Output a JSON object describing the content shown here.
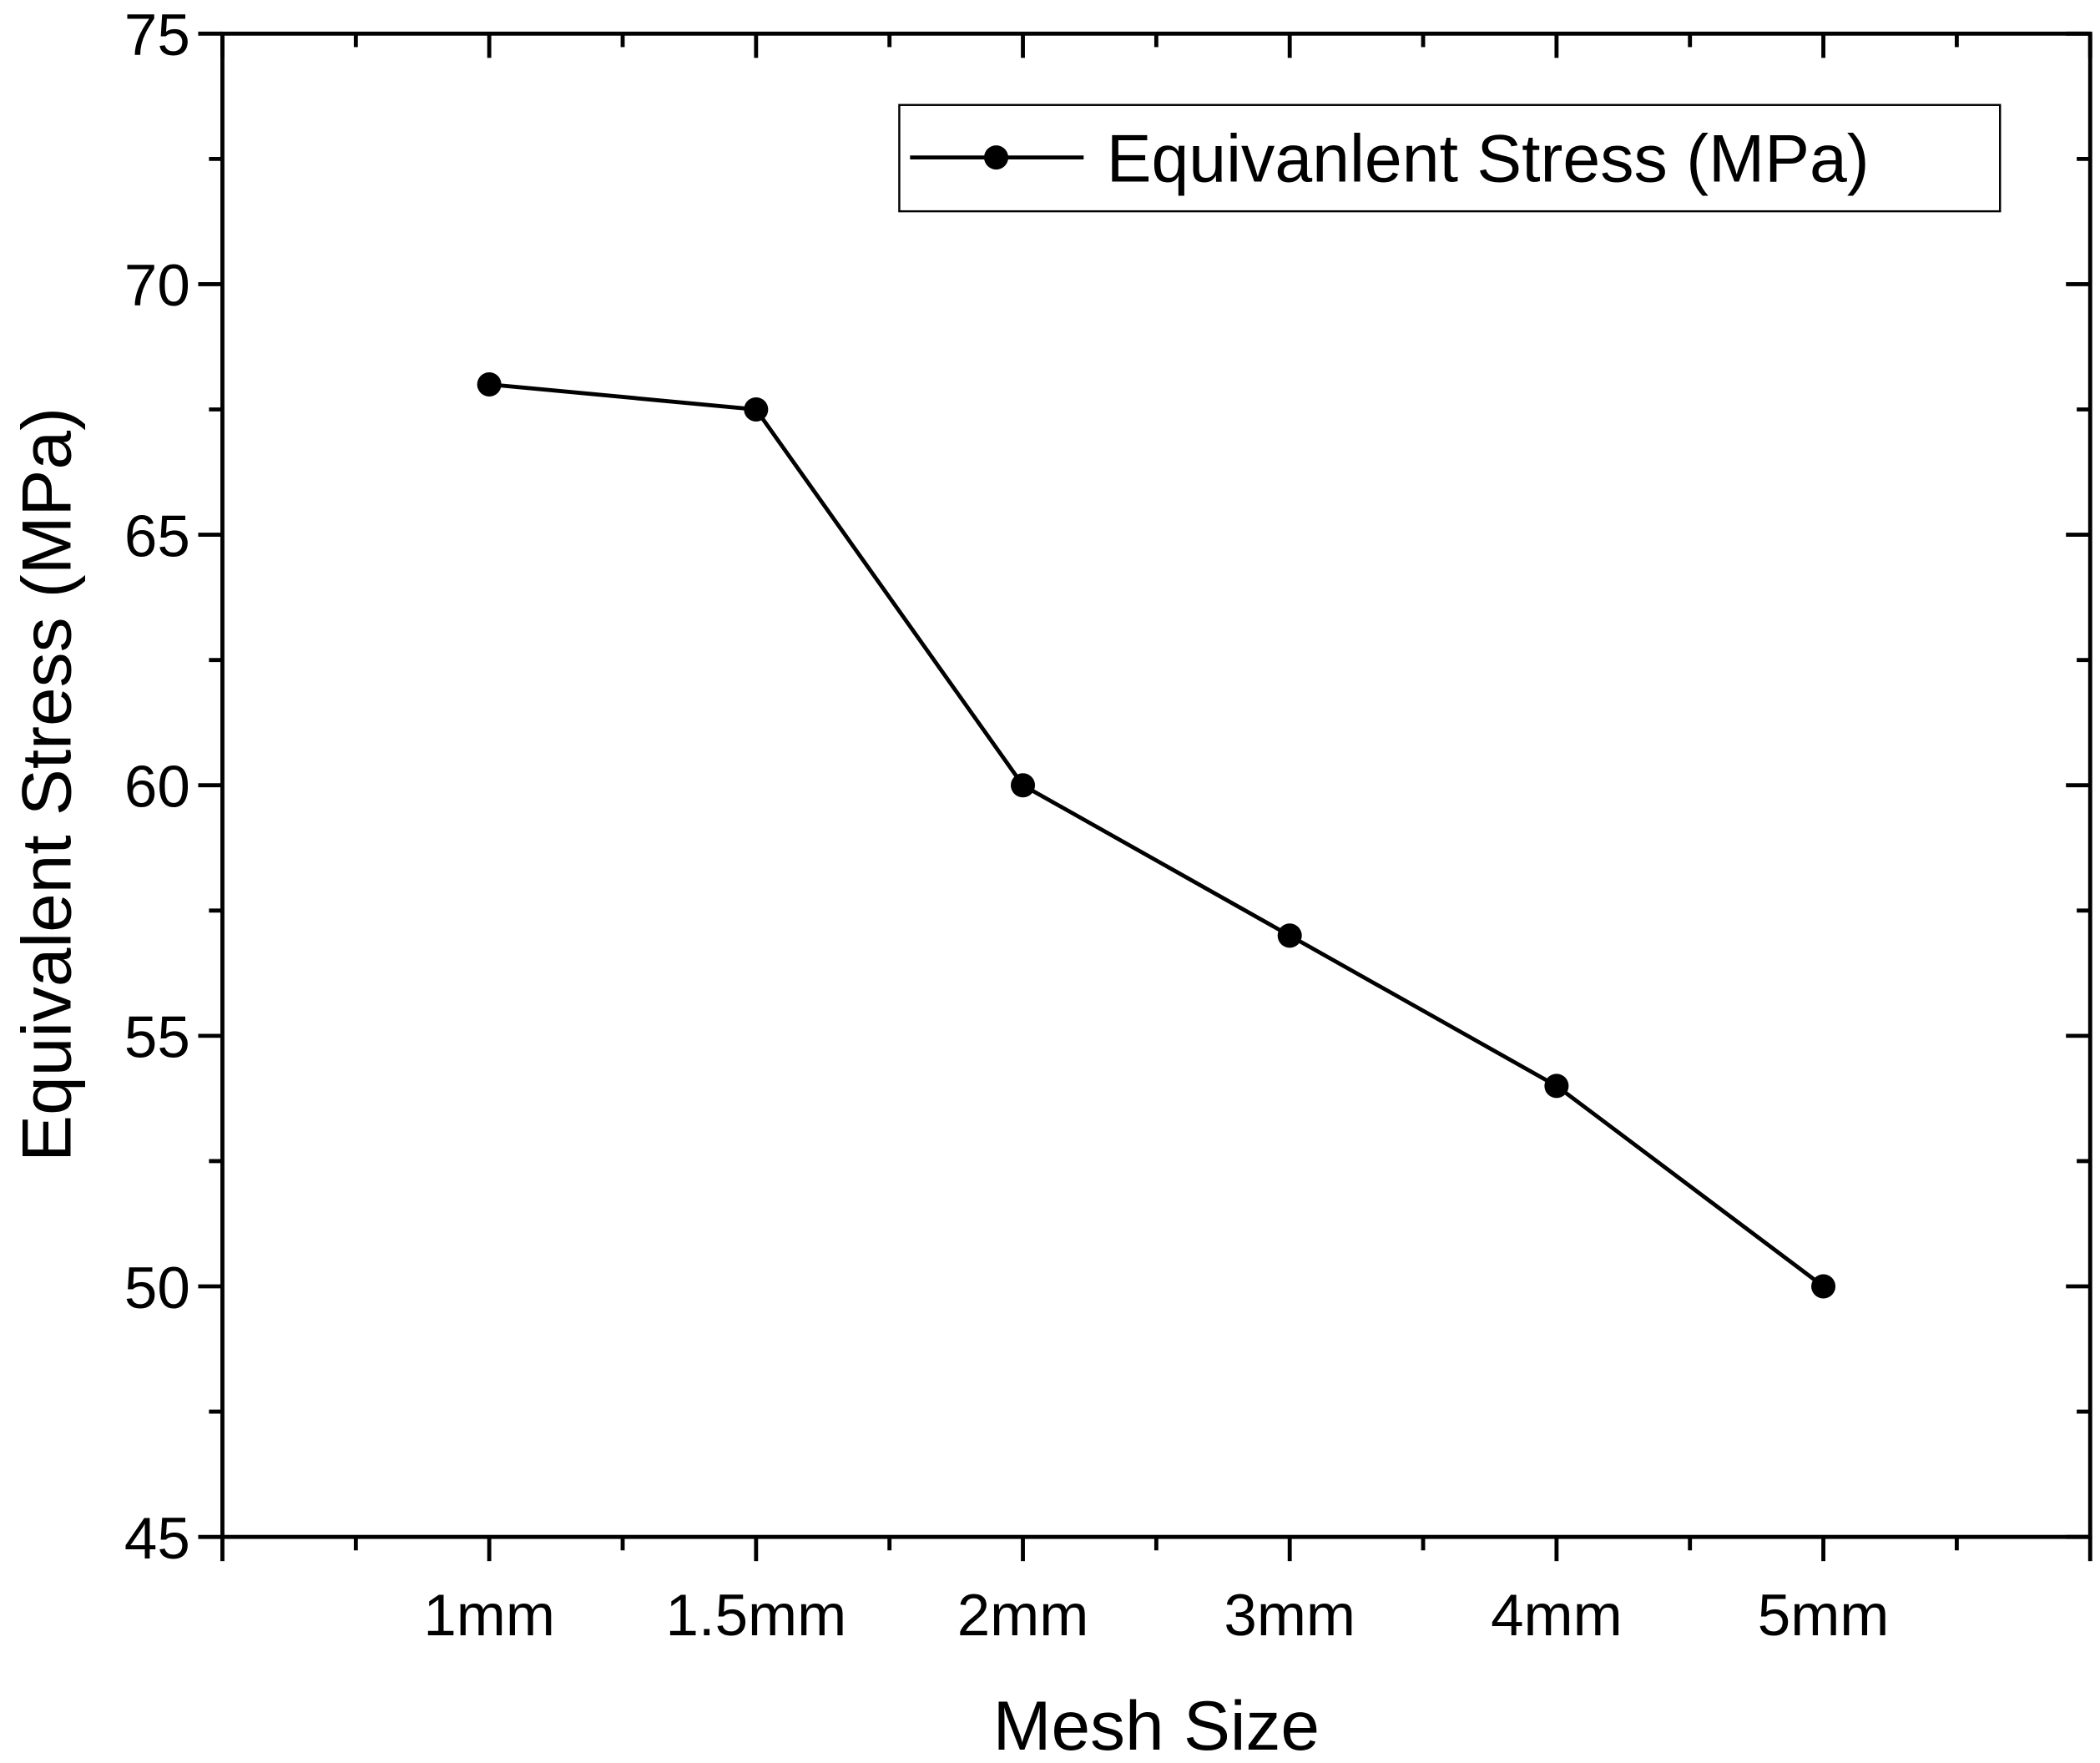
{
  "chart_data": {
    "type": "line",
    "title": "",
    "xlabel": "Mesh Size",
    "ylabel": "Equivalent Stress (MPa)",
    "categories": [
      "1mm",
      "1.5mm",
      "2mm",
      "3mm",
      "4mm",
      "5mm"
    ],
    "series": [
      {
        "name": "Equivanlent Stress (MPa)",
        "values": [
          68,
          67.5,
          60,
          57,
          54,
          50
        ],
        "color": "#000000",
        "marker": "circle"
      }
    ],
    "ylim": [
      45,
      75
    ],
    "yticks": [
      "45",
      "50",
      "55",
      "60",
      "65",
      "70",
      "75"
    ],
    "grid": false,
    "legend": "top-right"
  }
}
